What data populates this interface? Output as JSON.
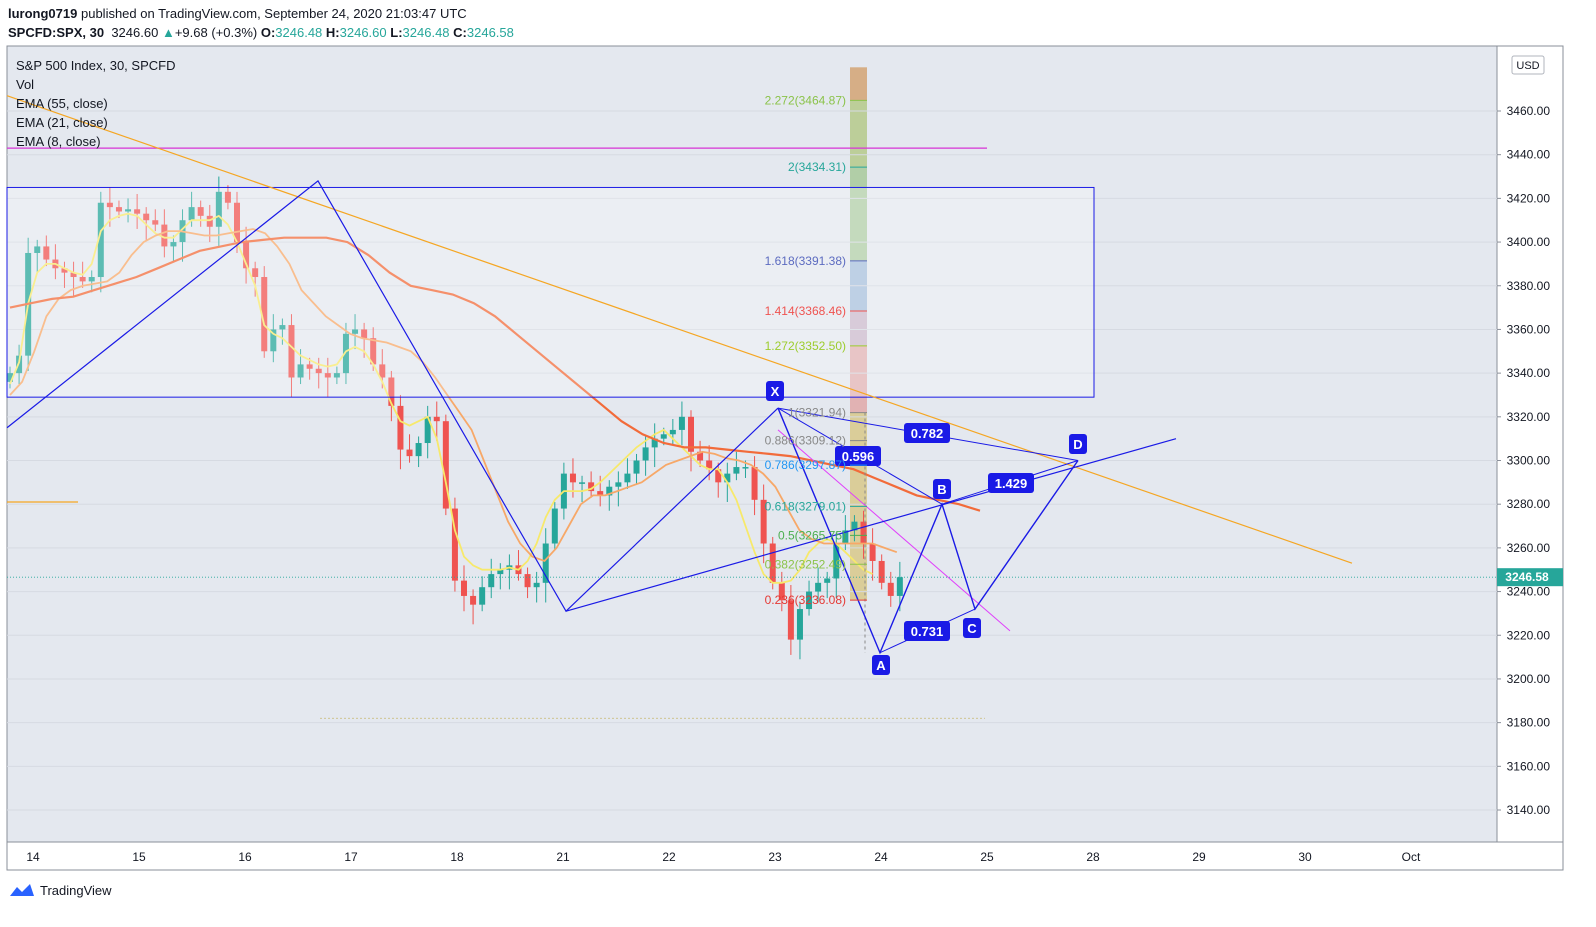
{
  "header": {
    "publisher": "lurong0719",
    "published_text": "published on TradingView.com, September 24, 2020 21:03:47 UTC",
    "symbol": "SPCFD:SPX, 30",
    "price": "3246.60",
    "change": "+9.68 (+0.3%)",
    "o_label": "O:",
    "o_value": "3246.48",
    "h_label": "H:",
    "h_value": "3246.60",
    "l_label": "L:",
    "l_value": "3246.48",
    "c_label": "C:",
    "c_value": "3246.58"
  },
  "legend": {
    "title": "S&P 500 Index, 30, SPCFD",
    "vol": "Vol",
    "ema55": "EMA (55, close)",
    "ema21": "EMA (21, close)",
    "ema8": "EMA (8, close)"
  },
  "currency": "USD",
  "footer": {
    "brand": "TradingView"
  },
  "chart_data": {
    "type": "candlestick",
    "ylim": [
      3130,
      3480
    ],
    "y_ticks": [
      3140,
      3160,
      3180,
      3200,
      3220,
      3240,
      3260,
      3280,
      3300,
      3320,
      3340,
      3360,
      3380,
      3400,
      3420,
      3440,
      3460
    ],
    "x_ticks": [
      "14",
      "15",
      "16",
      "17",
      "18",
      "21",
      "22",
      "23",
      "24",
      "25",
      "28",
      "29",
      "30",
      "Oct"
    ],
    "last_price_label": "3246.58",
    "colors": {
      "up": "#26a69a",
      "down": "#ef5350",
      "ema8": "#f7e96b",
      "ema21": "#f7a868",
      "ema55": "#f26b3a",
      "pattern": "#1a1ae6",
      "trend": "#f5a623",
      "magenta": "#e040fb"
    },
    "series": {
      "close": [
        3340,
        3348,
        3395,
        3398,
        3392,
        3388,
        3386,
        3384,
        3382,
        3384,
        3418,
        3416,
        3414,
        3415,
        3413,
        3410,
        3408,
        3398,
        3400,
        3410,
        3416,
        3412,
        3407,
        3423,
        3418,
        3400,
        3388,
        3384,
        3350,
        3360,
        3362,
        3338,
        3344,
        3342,
        3340,
        3338,
        3340,
        3358,
        3360,
        3356,
        3344,
        3338,
        3325,
        3305,
        3302,
        3308,
        3320,
        3318,
        3278,
        3245,
        3238,
        3234,
        3242,
        3248,
        3250,
        3252,
        3248,
        3242,
        3244,
        3262,
        3278,
        3294,
        3290,
        3290,
        3286,
        3284,
        3288,
        3290,
        3294,
        3300,
        3306,
        3310,
        3312,
        3314,
        3320,
        3304,
        3300,
        3296,
        3290,
        3294,
        3297,
        3297,
        3282,
        3262,
        3244,
        3236,
        3218,
        3232,
        3240,
        3244,
        3246,
        3262,
        3268,
        3272,
        3262,
        3254,
        3244,
        3238,
        3246.58
      ],
      "ema8": [
        3335,
        3345,
        3372,
        3386,
        3390,
        3390,
        3388,
        3386,
        3385,
        3390,
        3405,
        3410,
        3412,
        3413,
        3412,
        3408,
        3404,
        3402,
        3402,
        3406,
        3410,
        3410,
        3410,
        3412,
        3408,
        3400,
        3390,
        3380,
        3362,
        3358,
        3356,
        3352,
        3348,
        3346,
        3344,
        3343,
        3344,
        3350,
        3352,
        3350,
        3344,
        3336,
        3326,
        3318,
        3316,
        3318,
        3320,
        3310,
        3290,
        3268,
        3256,
        3252,
        3250,
        3250,
        3250,
        3251,
        3250,
        3254,
        3262,
        3274,
        3282,
        3286,
        3286,
        3286,
        3287,
        3290,
        3294,
        3298,
        3302,
        3306,
        3309,
        3312,
        3314,
        3310,
        3306,
        3302,
        3298,
        3296,
        3296,
        3290,
        3282,
        3270,
        3258,
        3248,
        3244,
        3244,
        3245,
        3250,
        3258,
        3262,
        3264,
        3262,
        3258,
        3254,
        3250,
        3248
      ],
      "ema21": [
        3330,
        3336,
        3350,
        3366,
        3374,
        3378,
        3380,
        3381,
        3382,
        3386,
        3394,
        3400,
        3403,
        3405,
        3405,
        3404,
        3403,
        3403,
        3404,
        3405,
        3406,
        3404,
        3398,
        3390,
        3378,
        3372,
        3366,
        3362,
        3358,
        3356,
        3355,
        3354,
        3352,
        3350,
        3345,
        3338,
        3330,
        3322,
        3314,
        3300,
        3286,
        3272,
        3262,
        3256,
        3254,
        3260,
        3270,
        3280,
        3284,
        3284,
        3286,
        3288,
        3290,
        3294,
        3298,
        3300,
        3302,
        3304,
        3303,
        3301,
        3300,
        3298,
        3294,
        3288,
        3278,
        3268,
        3264,
        3262,
        3262,
        3262,
        3262,
        3262,
        3260,
        3258
      ],
      "ema55": [
        3370,
        3372,
        3374,
        3375,
        3378,
        3381,
        3384,
        3388,
        3392,
        3396,
        3398,
        3400,
        3401,
        3402,
        3402,
        3402,
        3400,
        3394,
        3386,
        3380,
        3378,
        3376,
        3372,
        3366,
        3358,
        3350,
        3342,
        3334,
        3326,
        3318,
        3312,
        3308,
        3306,
        3306,
        3305,
        3304,
        3303,
        3302,
        3300,
        3298,
        3296,
        3292,
        3288,
        3284,
        3282,
        3280,
        3277
      ]
    },
    "annotations": {
      "box": {
        "top": 3425,
        "bottom": 3329
      },
      "horizontal_line": 3443,
      "left_segment": 3281,
      "harmonic_points": [
        "X",
        "A",
        "B",
        "C",
        "D"
      ],
      "ratios": [
        "0.782",
        "0.596",
        "1.429",
        "0.731"
      ],
      "fib_levels": [
        {
          "label": "2.272(3464.87)",
          "value": 3464.87
        },
        {
          "label": "2(3434.31)",
          "value": 3434.31
        },
        {
          "label": "1.618(3391.38)",
          "value": 3391.38
        },
        {
          "label": "1.414(3368.46)",
          "value": 3368.46
        },
        {
          "label": "1.272(3352.50)",
          "value": 3352.5
        },
        {
          "label": "1(3321.94)",
          "value": 3321.94
        },
        {
          "label": "0.886(3309.12)",
          "value": 3309.12
        },
        {
          "label": "0.786(3297.87)",
          "value": 3297.87
        },
        {
          "label": "0.618(3279.01)",
          "value": 3279.01
        },
        {
          "label": "0.5(3265.75)",
          "value": 3265.75
        },
        {
          "label": "0.382(3252.49)",
          "value": 3252.49
        },
        {
          "label": "0.236(3236.08)",
          "value": 3236.08
        }
      ]
    }
  }
}
